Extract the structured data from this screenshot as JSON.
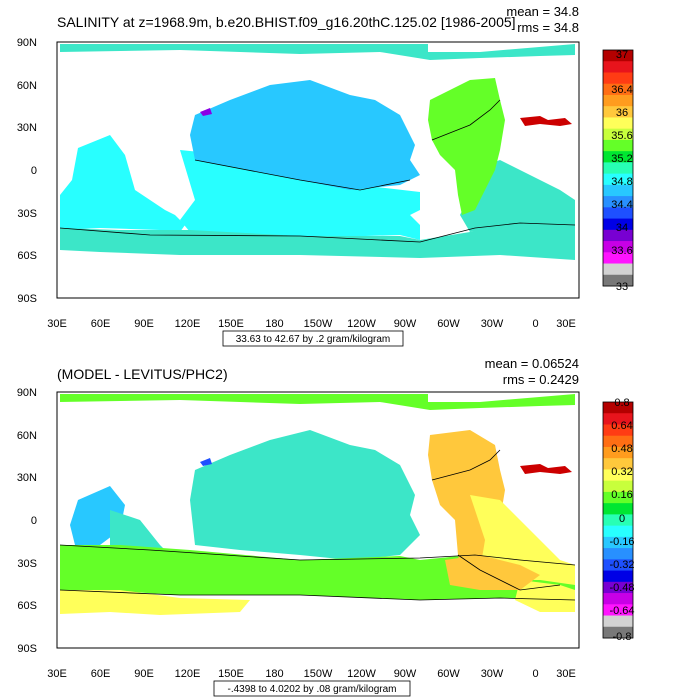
{
  "chart_data": [
    {
      "type": "map",
      "title": "SALINITY at z=1968.9m, b.e20.BHIST.f09_g16.20thC.125.02 [1986-2005]",
      "stats": {
        "mean_label": "mean = 34.8",
        "rms_label": "rms = 34.8"
      },
      "range_label": "33.63 to 42.67 by .2 gram/kilogram",
      "units": "gram/kilogram",
      "x_ticks": [
        "30E",
        "60E",
        "90E",
        "120E",
        "150E",
        "180",
        "150W",
        "120W",
        "90W",
        "60W",
        "30W",
        "0",
        "30E"
      ],
      "y_ticks": [
        "90N",
        "60N",
        "30N",
        "0",
        "30S",
        "60S",
        "90S"
      ],
      "colorbar": {
        "labels": [
          "37",
          "36.4",
          "36",
          "35.6",
          "35.2",
          "34.8",
          "34.4",
          "34",
          "33.6",
          "33"
        ],
        "colors": [
          "#b40000",
          "#e8141c",
          "#ff3c14",
          "#ff6e14",
          "#ff9c1e",
          "#ffc83c",
          "#ffff5a",
          "#c8ff3c",
          "#64ff28",
          "#00e632",
          "#28ffb4",
          "#28ffff",
          "#28c8ff",
          "#2890ff",
          "#1e50ff",
          "#0000e6",
          "#7800d2",
          "#c800e6",
          "#ff14ff",
          "#d2d2d2",
          "#787878"
        ]
      }
    },
    {
      "type": "map",
      "title": "(MODEL - LEVITUS/PHC2)",
      "stats": {
        "mean_label": "mean = 0.06524",
        "rms_label": "rms = 0.2429"
      },
      "range_label": "-.4398 to 4.0202 by .08 gram/kilogram",
      "units": "gram/kilogram",
      "x_ticks": [
        "30E",
        "60E",
        "90E",
        "120E",
        "150E",
        "180",
        "150W",
        "120W",
        "90W",
        "60W",
        "30W",
        "0",
        "30E"
      ],
      "y_ticks": [
        "90N",
        "60N",
        "30N",
        "0",
        "30S",
        "60S",
        "90S"
      ],
      "colorbar": {
        "labels": [
          "0.8",
          "0.64",
          "0.48",
          "0.32",
          "0.16",
          "0",
          "-0.16",
          "-0.32",
          "-0.48",
          "-0.64",
          "-0.8"
        ],
        "colors": [
          "#b40000",
          "#e8141c",
          "#ff3c14",
          "#ff6e14",
          "#ff9c1e",
          "#ffc83c",
          "#ffff5a",
          "#c8ff3c",
          "#64ff28",
          "#00e632",
          "#28ffb4",
          "#28ffff",
          "#28c8ff",
          "#2890ff",
          "#1e50ff",
          "#0000e6",
          "#7800d2",
          "#c800e6",
          "#ff14ff",
          "#d2d2d2",
          "#787878"
        ]
      }
    }
  ]
}
